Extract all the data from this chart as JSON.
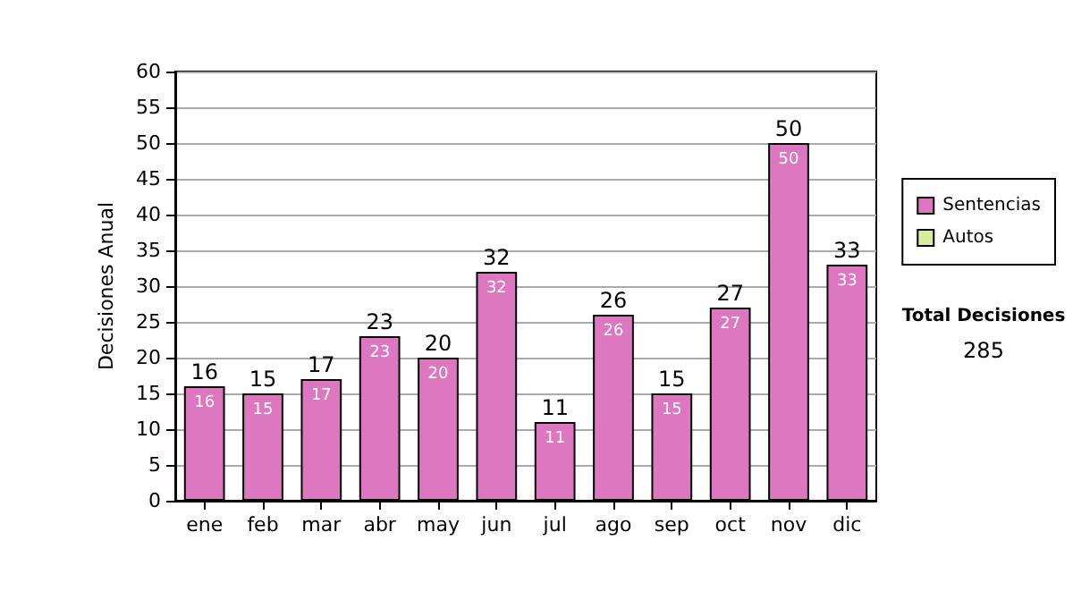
{
  "chart_data": {
    "type": "bar",
    "ylabel": "Decisiones Anual",
    "categories": [
      "ene",
      "feb",
      "mar",
      "abr",
      "may",
      "jun",
      "jul",
      "ago",
      "sep",
      "oct",
      "nov",
      "dic"
    ],
    "series": [
      {
        "name": "Sentencias",
        "color": "#dd77c0",
        "values": [
          16,
          15,
          17,
          23,
          20,
          32,
          11,
          26,
          15,
          27,
          50,
          33
        ]
      },
      {
        "name": "Autos",
        "color": "#d8eca0",
        "values": [
          null,
          null,
          null,
          null,
          null,
          null,
          null,
          null,
          null,
          null,
          null,
          null
        ]
      }
    ],
    "stacked": true,
    "data_labels": true,
    "totals": [
      "16",
      "15",
      "17",
      "23",
      "20",
      "32",
      "11",
      "26",
      "15",
      "27",
      "50",
      "33"
    ],
    "ylim": [
      0,
      60
    ],
    "yticks": [
      0,
      5,
      10,
      15,
      20,
      25,
      30,
      35,
      40,
      45,
      50,
      55,
      60
    ],
    "grid": "y",
    "legend": "right",
    "annotations": [
      "Total Decisiones",
      "285"
    ]
  }
}
